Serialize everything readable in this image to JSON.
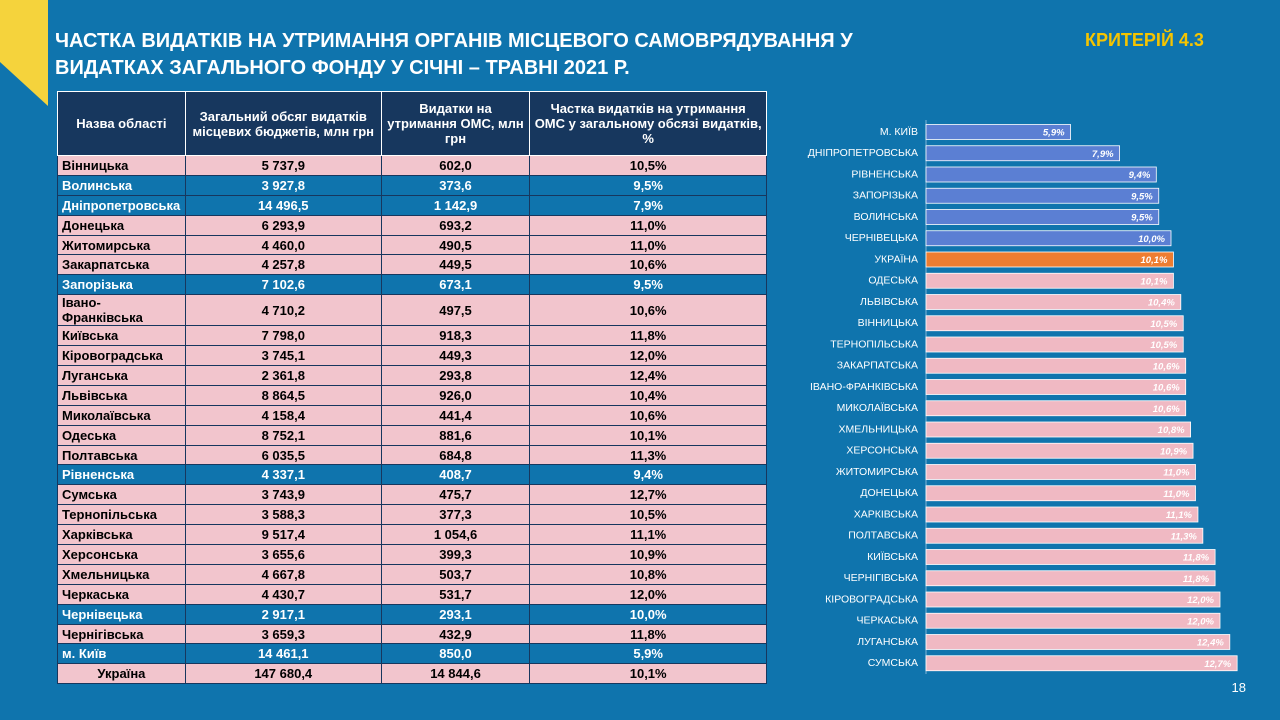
{
  "header": {
    "title": "ЧАСТКА ВИДАТКІВ НА УТРИМАННЯ ОРГАНІВ МІСЦЕВОГО САМОВРЯДУВАННЯ У ВИДАТКАХ ЗАГАЛЬНОГО ФОНДУ У СІЧНІ – ТРАВНІ 2021 Р.",
    "criterion": "КРИТЕРІЙ 4.3",
    "page": "18"
  },
  "table": {
    "columns": [
      "Назва області",
      "Загальний обсяг видатків місцевих бюджетів, млн грн",
      "Видатки на утримання  ОМС, млн грн",
      "Частка видатків на утримання ОМС у загальному обсязі видатків, %"
    ],
    "rows": [
      [
        "Вінницька",
        "5 737,9",
        "602,0",
        "10,5%"
      ],
      [
        "Волинська",
        "3 927,8",
        "373,6",
        "9,5%"
      ],
      [
        "Дніпропетровська",
        "14 496,5",
        "1 142,9",
        "7,9%"
      ],
      [
        "Донецька",
        "6 293,9",
        "693,2",
        "11,0%"
      ],
      [
        "Житомирська",
        "4 460,0",
        "490,5",
        "11,0%"
      ],
      [
        "Закарпатська",
        "4 257,8",
        "449,5",
        "10,6%"
      ],
      [
        "Запорізька",
        "7 102,6",
        "673,1",
        "9,5%"
      ],
      [
        "Івано-Франківська",
        "4 710,2",
        "497,5",
        "10,6%"
      ],
      [
        "Київська",
        "7 798,0",
        "918,3",
        "11,8%"
      ],
      [
        "Кіровоградська",
        "3 745,1",
        "449,3",
        "12,0%"
      ],
      [
        "Луганська",
        "2 361,8",
        "293,8",
        "12,4%"
      ],
      [
        "Львівська",
        "8 864,5",
        "926,0",
        "10,4%"
      ],
      [
        "Миколаївська",
        "4 158,4",
        "441,4",
        "10,6%"
      ],
      [
        "Одеська",
        "8 752,1",
        "881,6",
        "10,1%"
      ],
      [
        "Полтавська",
        "6 035,5",
        "684,8",
        "11,3%"
      ],
      [
        "Рівненська",
        "4 337,1",
        "408,7",
        "9,4%"
      ],
      [
        "Сумська",
        "3 743,9",
        "475,7",
        "12,7%"
      ],
      [
        "Тернопільська",
        "3 588,3",
        "377,3",
        "10,5%"
      ],
      [
        "Харківська",
        "9 517,4",
        "1 054,6",
        "11,1%"
      ],
      [
        "Херсонська",
        "3 655,6",
        "399,3",
        "10,9%"
      ],
      [
        "Хмельницька",
        "4 667,8",
        "503,7",
        "10,8%"
      ],
      [
        "Черкаська",
        "4 430,7",
        "531,7",
        "12,0%"
      ],
      [
        "Чернівецька",
        "2 917,1",
        "293,1",
        "10,0%"
      ],
      [
        "Чернігівська",
        "3 659,3",
        "432,9",
        "11,8%"
      ],
      [
        "м. Київ",
        "14 461,1",
        "850,0",
        "5,9%"
      ],
      [
        "Україна",
        "147 680,4",
        "14 844,6",
        "10,1%"
      ]
    ]
  },
  "chart_data": {
    "type": "barh",
    "categories": [
      "М. КИЇВ",
      "ДНІПРОПЕТРОВСЬКА",
      "РІВНЕНСЬКА",
      "ЗАПОРІЗЬКА",
      "ВОЛИНСЬКА",
      "ЧЕРНІВЕЦЬКА",
      "УКРАЇНА",
      "ОДЕСЬКА",
      "ЛЬВІВСЬКА",
      "ВІННИЦЬКА",
      "ТЕРНОПІЛЬСЬКА",
      "ЗАКАРПАТСЬКА",
      "ІВАНО-ФРАНКІВСЬКА",
      "МИКОЛАЇВСЬКА",
      "ХМЕЛЬНИЦЬКА",
      "ХЕРСОНСЬКА",
      "ЖИТОМИРСЬКА",
      "ДОНЕЦЬКА",
      "ХАРКІВСЬКА",
      "ПОЛТАВСЬКА",
      "КИЇВСЬКА",
      "ЧЕРНІГІВСЬКА",
      "КІРОВОГРАДСЬКА",
      "ЧЕРКАСЬКА",
      "ЛУГАНСЬКА",
      "СУМСЬКА"
    ],
    "values": [
      5.9,
      7.9,
      9.4,
      9.5,
      9.5,
      10.0,
      10.1,
      10.1,
      10.4,
      10.5,
      10.5,
      10.6,
      10.6,
      10.6,
      10.8,
      10.9,
      11.0,
      11.0,
      11.1,
      11.3,
      11.8,
      11.8,
      12.0,
      12.0,
      12.4,
      12.7
    ],
    "value_labels": [
      "5,9%",
      "7,9%",
      "9,4%",
      "9,5%",
      "9,5%",
      "10,0%",
      "10,1%",
      "10,1%",
      "10,4%",
      "10,5%",
      "10,5%",
      "10,6%",
      "10,6%",
      "10,6%",
      "10,8%",
      "10,9%",
      "11,0%",
      "11,0%",
      "11,1%",
      "11,3%",
      "11,8%",
      "11,8%",
      "12,0%",
      "12,0%",
      "12,4%",
      "12,7%"
    ],
    "colors": [
      "#5b7fd3",
      "#5b7fd3",
      "#5b7fd3",
      "#5b7fd3",
      "#5b7fd3",
      "#5b7fd3",
      "#ed7d31",
      "#f0b9c3",
      "#f0b9c3",
      "#f0b9c3",
      "#f0b9c3",
      "#f0b9c3",
      "#f0b9c3",
      "#f0b9c3",
      "#f0b9c3",
      "#f0b9c3",
      "#f0b9c3",
      "#f0b9c3",
      "#f0b9c3",
      "#f0b9c3",
      "#f0b9c3",
      "#f0b9c3",
      "#f0b9c3",
      "#f0b9c3",
      "#f0b9c3",
      "#f0b9c3"
    ],
    "xlim": [
      0,
      14
    ]
  }
}
